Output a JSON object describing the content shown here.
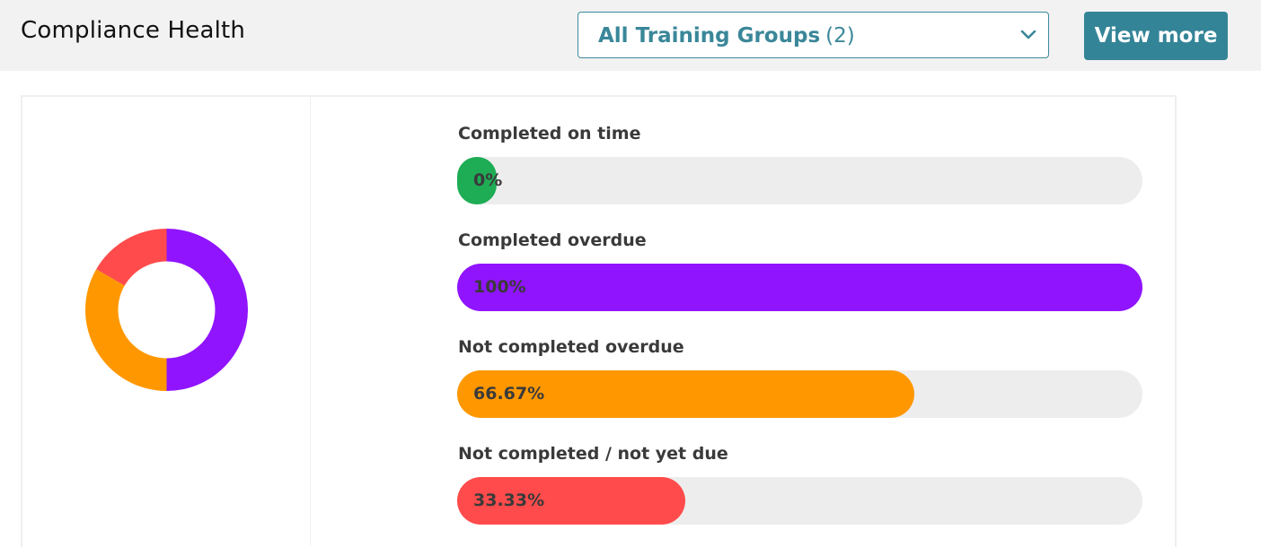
{
  "header": {
    "title": "Compliance Health",
    "group_select": {
      "label": "All Training Groups",
      "count": "(2)",
      "icon": "chevron-down-icon"
    },
    "view_more_label": "View more"
  },
  "colors": {
    "completed_on_time": "#1eac55",
    "completed_overdue": "#9014fe",
    "not_completed_overdue": "#ff9800",
    "not_yet_due": "#ff4b4b",
    "track": "#ededed",
    "accent": "#348497"
  },
  "donut": {
    "segments": [
      {
        "key": "completed_overdue",
        "value": 3,
        "color": "#9014fe"
      },
      {
        "key": "not_completed_overdue",
        "value": 2,
        "color": "#ff9800"
      },
      {
        "key": "not_yet_due",
        "value": 1,
        "color": "#ff4b4b"
      }
    ]
  },
  "metrics": [
    {
      "label": "Completed on time",
      "percent": 0,
      "value_text": "0%",
      "color": "#1eac55"
    },
    {
      "label": "Completed overdue",
      "percent": 100,
      "value_text": "100%",
      "color": "#9014fe"
    },
    {
      "label": "Not completed overdue",
      "percent": 66.67,
      "value_text": "66.67%",
      "color": "#ff9800"
    },
    {
      "label": "Not completed / not yet due",
      "percent": 33.33,
      "value_text": "33.33%",
      "color": "#ff4b4b"
    }
  ]
}
